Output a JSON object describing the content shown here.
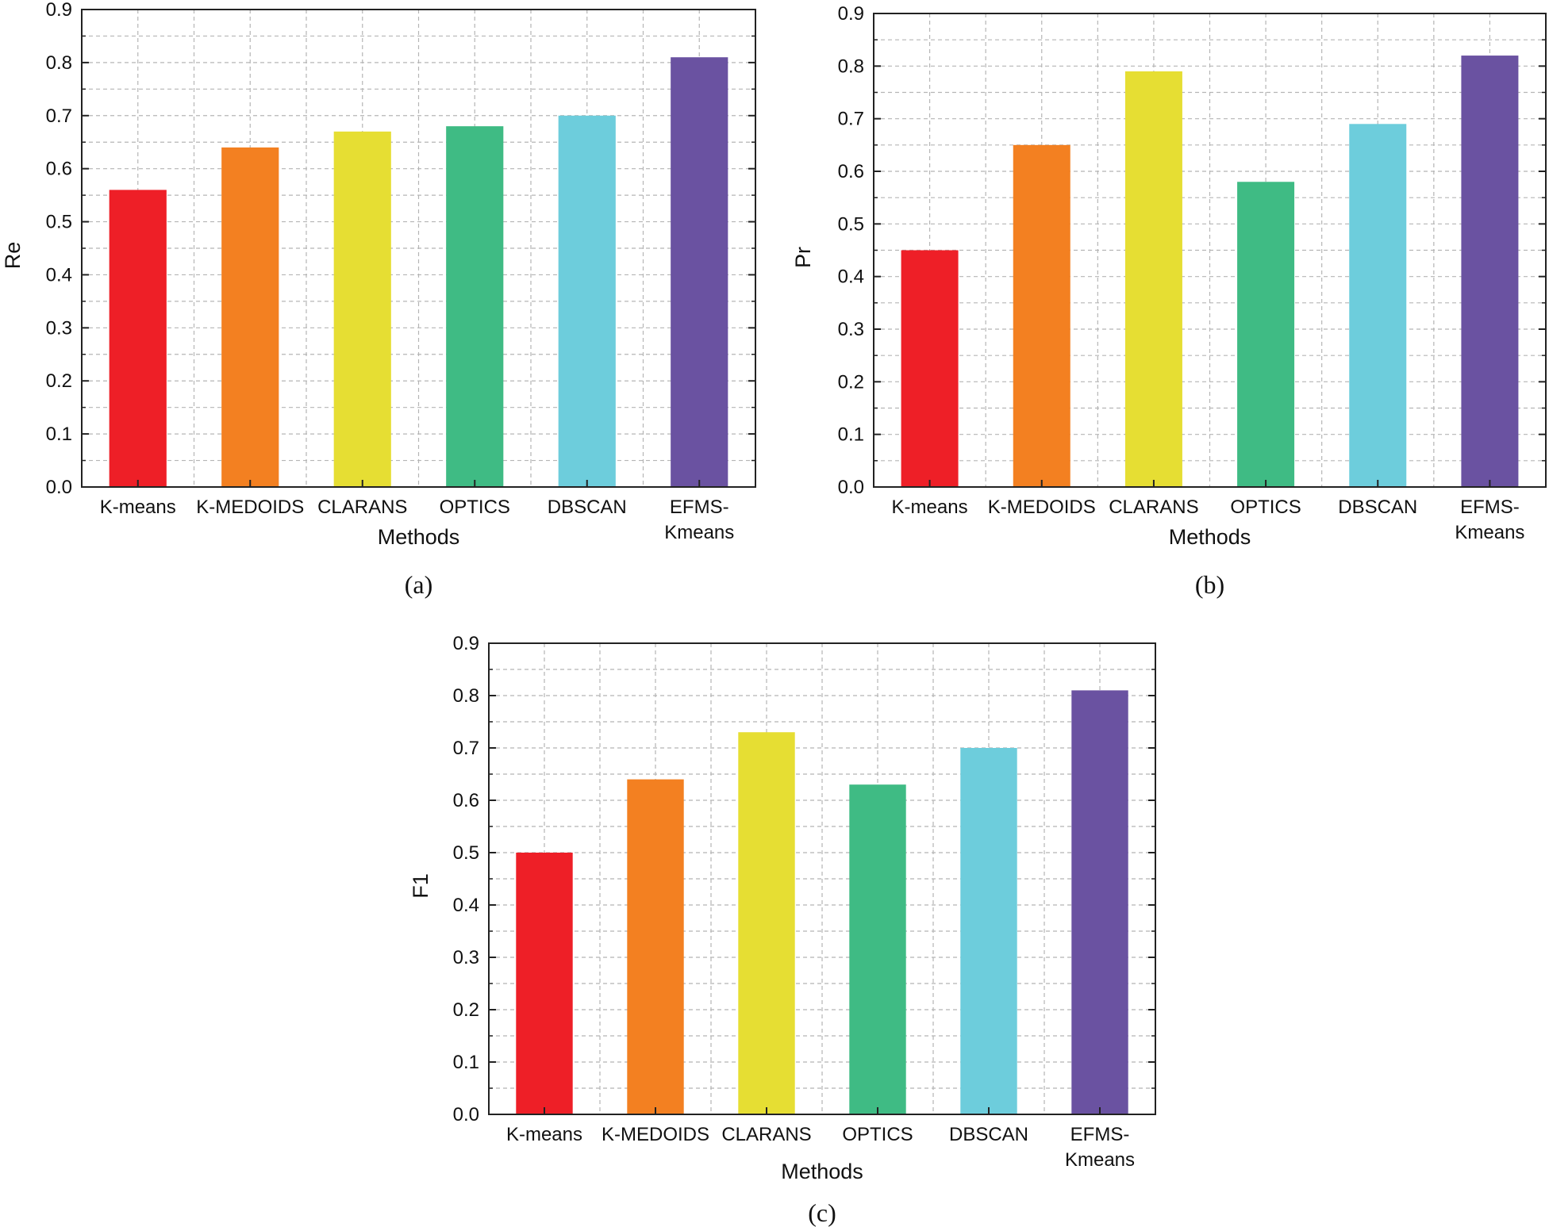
{
  "chart_data": [
    {
      "type": "bar",
      "caption": "(a)",
      "ylabel": "Re",
      "xlabel": "Methods",
      "ylim": [
        0,
        0.9
      ],
      "yticks": [
        "0.0",
        "0.1",
        "0.2",
        "0.3",
        "0.4",
        "0.5",
        "0.6",
        "0.7",
        "0.8",
        "0.9"
      ],
      "categories": [
        [
          "K-means"
        ],
        [
          "K-MEDOIDS"
        ],
        [
          "CLARANS"
        ],
        [
          "OPTICS"
        ],
        [
          "DBSCAN"
        ],
        [
          "EFMS-",
          "Kmeans"
        ]
      ],
      "values": [
        0.56,
        0.64,
        0.67,
        0.68,
        0.7,
        0.81
      ],
      "colors": [
        "#ee1f27",
        "#f38021",
        "#e6de33",
        "#3fbb84",
        "#6dcddc",
        "#6a52a1"
      ],
      "grid": true
    },
    {
      "type": "bar",
      "caption": "(b)",
      "ylabel": "Pr",
      "xlabel": "Methods",
      "ylim": [
        0,
        0.9
      ],
      "yticks": [
        "0.0",
        "0.1",
        "0.2",
        "0.3",
        "0.4",
        "0.5",
        "0.6",
        "0.7",
        "0.8",
        "0.9"
      ],
      "categories": [
        [
          "K-means"
        ],
        [
          "K-MEDOIDS"
        ],
        [
          "CLARANS"
        ],
        [
          "OPTICS"
        ],
        [
          "DBSCAN"
        ],
        [
          "EFMS-",
          "Kmeans"
        ]
      ],
      "values": [
        0.45,
        0.65,
        0.79,
        0.58,
        0.69,
        0.82
      ],
      "colors": [
        "#ee1f27",
        "#f38021",
        "#e6de33",
        "#3fbb84",
        "#6dcddc",
        "#6a52a1"
      ],
      "grid": true
    },
    {
      "type": "bar",
      "caption": "(c)",
      "ylabel": "F1",
      "xlabel": "Methods",
      "ylim": [
        0,
        0.9
      ],
      "yticks": [
        "0.0",
        "0.1",
        "0.2",
        "0.3",
        "0.4",
        "0.5",
        "0.6",
        "0.7",
        "0.8",
        "0.9"
      ],
      "categories": [
        [
          "K-means"
        ],
        [
          "K-MEDOIDS"
        ],
        [
          "CLARANS"
        ],
        [
          "OPTICS"
        ],
        [
          "DBSCAN"
        ],
        [
          "EFMS-",
          "Kmeans"
        ]
      ],
      "values": [
        0.5,
        0.64,
        0.73,
        0.63,
        0.7,
        0.81
      ],
      "colors": [
        "#ee1f27",
        "#f38021",
        "#e6de33",
        "#3fbb84",
        "#6dcddc",
        "#6a52a1"
      ],
      "grid": true
    }
  ]
}
